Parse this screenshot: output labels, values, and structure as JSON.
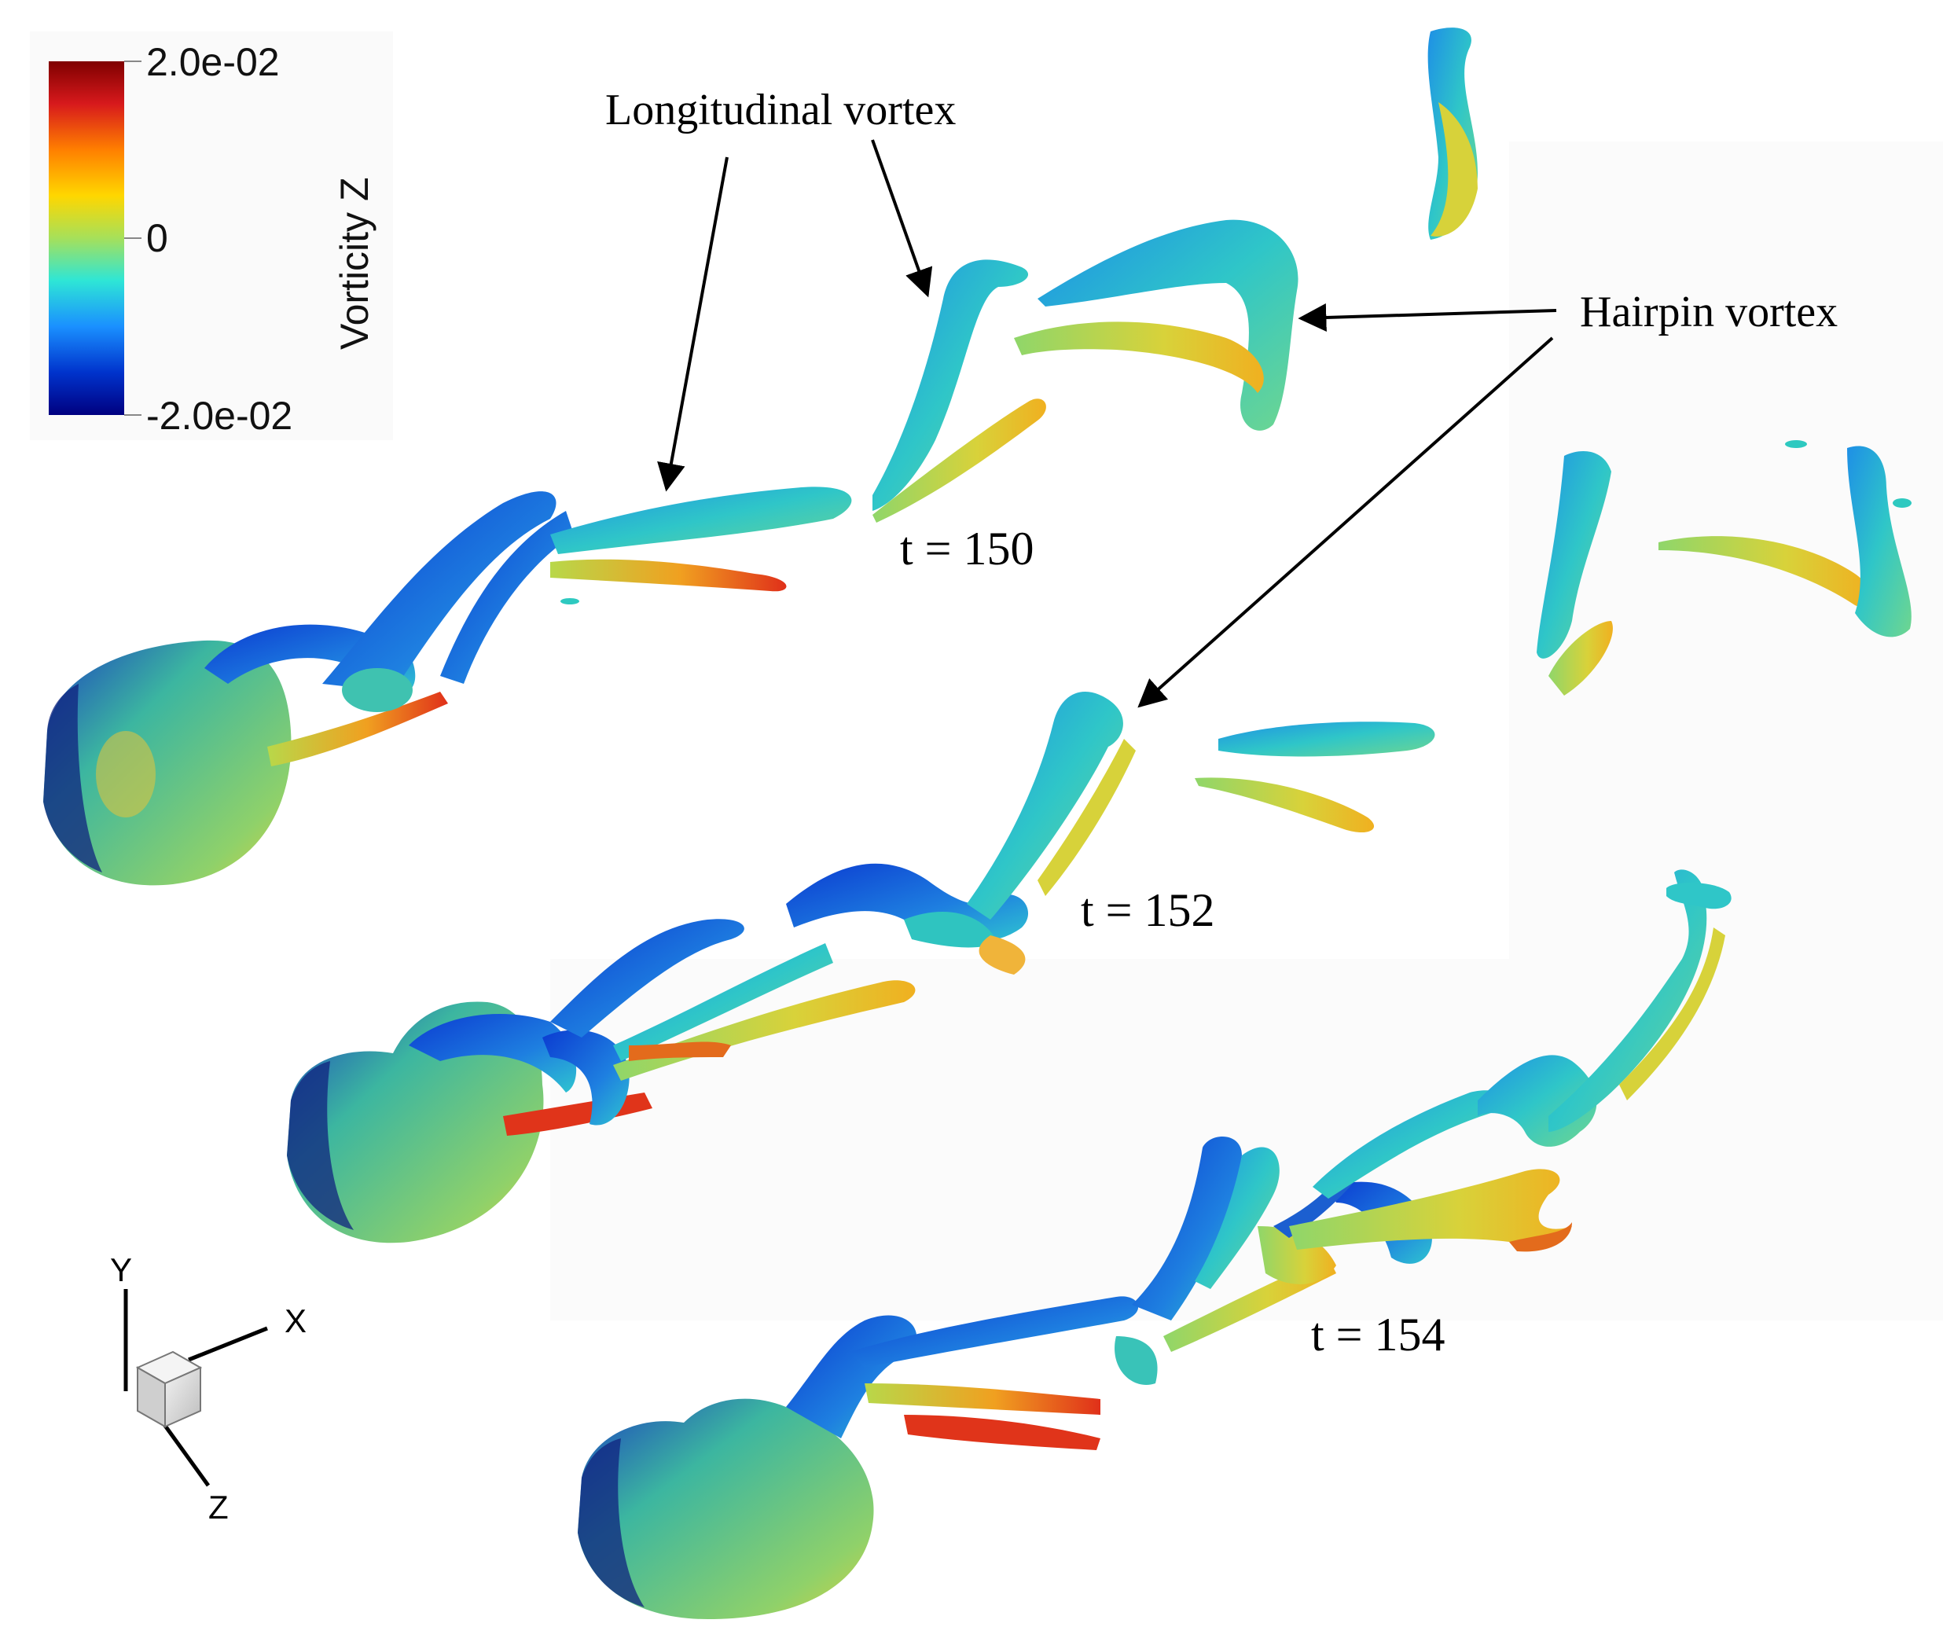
{
  "colorbar": {
    "title": "Vorticity Z",
    "max_label": "2.0e-02",
    "mid_label": "0",
    "min_label": "-2.0e-02",
    "colormap": [
      "#7f0000",
      "#d7191c",
      "#ff7f00",
      "#ffd700",
      "#a6e05a",
      "#2ee6d6",
      "#1a90ff",
      "#0033cc",
      "#000080"
    ]
  },
  "annotations": {
    "longitudinal": "Longitudinal vortex",
    "hairpin": "Hairpin vortex"
  },
  "snapshots": {
    "t150": "t = 150",
    "t152": "t = 152",
    "t154": "t = 154"
  },
  "axes": {
    "x": "X",
    "y": "Y",
    "z": "Z"
  }
}
